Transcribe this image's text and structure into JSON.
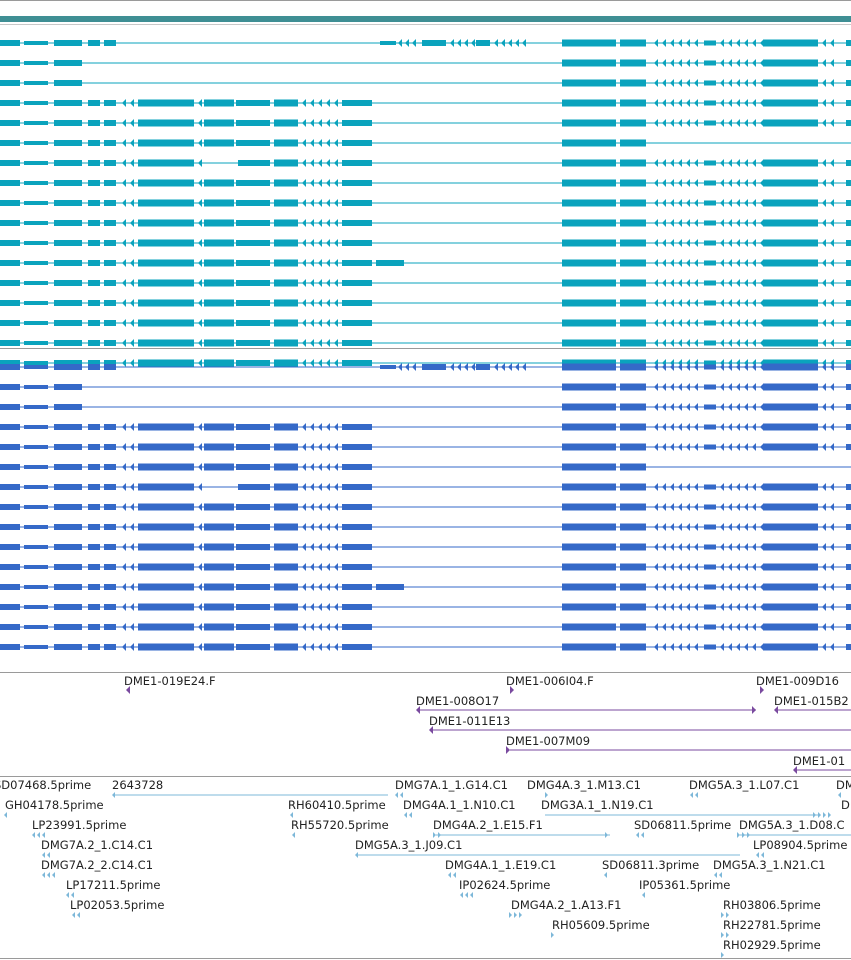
{
  "colors": {
    "header_bar": "#3f8f94",
    "separator": "#9a9a9a",
    "track_a": "#0aa3bd",
    "track_b": "#3569c8",
    "bac": "#7a4a9f",
    "est": "#7db8d9",
    "label": "#222222"
  },
  "tracks": {
    "transcripts_a": {
      "row_count": 17
    },
    "transcripts_b": {
      "row_count": 15
    },
    "bac_ends": {
      "features": [
        {
          "label": "DME1-019E24.F"
        },
        {
          "label": "DME1-006I04.F"
        },
        {
          "label": "DME1-009D16"
        },
        {
          "label": "DME1-008O17"
        },
        {
          "label": "DME1-015B2"
        },
        {
          "label": "DME1-011E13"
        },
        {
          "label": "DME1-007M09"
        },
        {
          "label": "DME1-01"
        }
      ]
    },
    "est_alignments": {
      "features": [
        {
          "label": "SD07468.5prime"
        },
        {
          "label": "2643728"
        },
        {
          "label": "GH04178.5prime"
        },
        {
          "label": "LP23991.5prime"
        },
        {
          "label": "DMG7A.2_1.C14.C1"
        },
        {
          "label": "DMG7A.2_2.C14.C1"
        },
        {
          "label": "LP17211.5prime"
        },
        {
          "label": "LP02053.5prime"
        },
        {
          "label": "RH60410.5prime"
        },
        {
          "label": "RH55720.5prime"
        },
        {
          "label": "DMG7A.1_1.G14.C1"
        },
        {
          "label": "DMG4A.1_1.N10.C1"
        },
        {
          "label": "DMG4A.3_1.M13.C1"
        },
        {
          "label": "DMG3A.1_1.N19.C1"
        },
        {
          "label": "DMG5A.3_1.L07.C1"
        },
        {
          "label": "DM"
        },
        {
          "label": "D"
        },
        {
          "label": "DMG4A.2_1.E15.F1"
        },
        {
          "label": "SD06811.5prime"
        },
        {
          "label": "DMG5A.3_1.D08.C"
        },
        {
          "label": "DMG5A.3_1.J09.C1"
        },
        {
          "label": "LP08904.5prime"
        },
        {
          "label": "DMG4A.1_1.E19.C1"
        },
        {
          "label": "SD06811.3prime"
        },
        {
          "label": "DMG5A.3_1.N21.C1"
        },
        {
          "label": "IP02624.5prime"
        },
        {
          "label": "IP05361.5prime"
        },
        {
          "label": "DMG4A.2_1.A13.F1"
        },
        {
          "label": "RH03806.5prime"
        },
        {
          "label": "RH05609.5prime"
        },
        {
          "label": "RH22781.5prime"
        },
        {
          "label": "RH02929.5prime"
        }
      ]
    }
  }
}
